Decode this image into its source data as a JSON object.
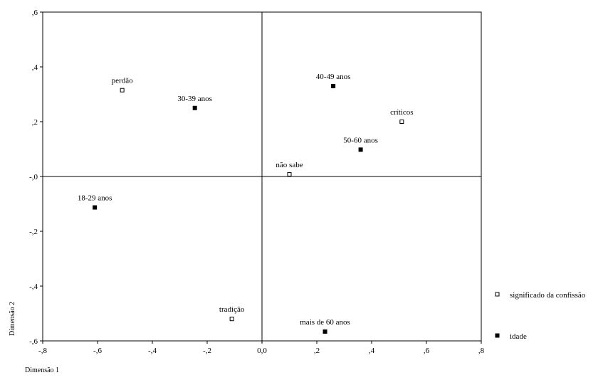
{
  "chart_data": {
    "type": "scatter",
    "xlabel": "Dimensão 1",
    "ylabel": "Dimensão 2",
    "xlim": [
      -0.8,
      0.8
    ],
    "ylim": [
      -0.6,
      0.6
    ],
    "xticks": [
      -0.8,
      -0.6,
      -0.4,
      -0.2,
      0.0,
      0.2,
      0.4,
      0.6,
      0.8
    ],
    "xtick_labels": [
      "-,8",
      "-,6",
      "-,4",
      "-,2",
      "0,0",
      ",2",
      ",4",
      ",6",
      ",8"
    ],
    "yticks": [
      0.6,
      0.4,
      0.2,
      0.0,
      -0.2,
      -0.4,
      -0.6
    ],
    "ytick_labels": [
      ",6",
      ",4",
      ",2",
      "-,0",
      "-,2",
      "-,4",
      "-,6"
    ],
    "reference_lines": {
      "x": 0.0,
      "y": 0.0
    },
    "legend_position": "right",
    "series": [
      {
        "name": "significado da confissão",
        "marker": "open-square",
        "points": [
          {
            "label": "perdão",
            "x": -0.51,
            "y": 0.315
          },
          {
            "label": "críticos",
            "x": 0.51,
            "y": 0.2
          },
          {
            "label": "não sabe",
            "x": 0.1,
            "y": 0.008
          },
          {
            "label": "tradição",
            "x": -0.11,
            "y": -0.52
          }
        ]
      },
      {
        "name": "idade",
        "marker": "filled-square",
        "points": [
          {
            "label": "30-39 anos",
            "x": -0.245,
            "y": 0.25
          },
          {
            "label": "40-49 anos",
            "x": 0.26,
            "y": 0.33
          },
          {
            "label": "50-60 anos",
            "x": 0.36,
            "y": 0.098
          },
          {
            "label": "18-29 anos",
            "x": -0.61,
            "y": -0.113
          },
          {
            "label": "mais de 60 anos",
            "x": 0.23,
            "y": -0.566
          }
        ]
      }
    ]
  }
}
